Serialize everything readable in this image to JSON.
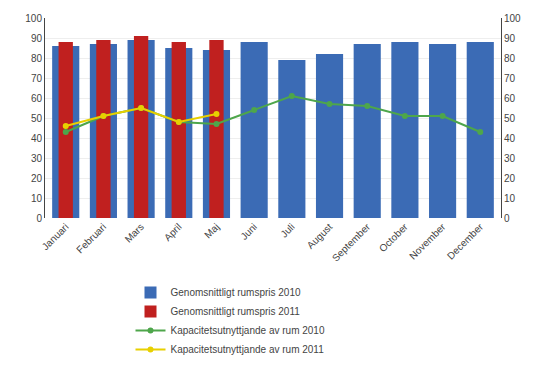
{
  "chart_data": {
    "type": "bar",
    "categories": [
      "Januari",
      "Februari",
      "Mars",
      "April",
      "Maj",
      "Juni",
      "Juli",
      "August",
      "September",
      "October",
      "November",
      "December"
    ],
    "series": [
      {
        "name": "Genomsnittligt rumspris 2010",
        "type": "bar",
        "color": "#3B6BB5",
        "values": [
          86,
          87,
          89,
          85,
          84,
          88,
          79,
          82,
          87,
          88,
          87,
          88
        ]
      },
      {
        "name": "Genomsnittligt rumspris 2011",
        "type": "bar",
        "color": "#C0201F",
        "values": [
          88,
          89,
          91,
          88,
          89,
          null,
          null,
          null,
          null,
          null,
          null,
          null
        ]
      },
      {
        "name": "Kapacitetsutnyttjande av rum 2010",
        "type": "line",
        "axis": "y2",
        "color": "#4EA64B",
        "marker": "circle",
        "line_style": "solid",
        "values": [
          43,
          51,
          55,
          48,
          47,
          54,
          61,
          57,
          56,
          51,
          51,
          43
        ]
      },
      {
        "name": "Kapacitetsutnyttjande av rum 2011",
        "type": "line",
        "axis": "y2",
        "color": "#E8D000",
        "marker": "circle",
        "line_style": "solid",
        "values": [
          46,
          51,
          55,
          48,
          52,
          null,
          null,
          null,
          null,
          null,
          null,
          null
        ]
      }
    ],
    "ylim": [
      0,
      100
    ],
    "yticks": [
      0,
      10,
      20,
      30,
      40,
      50,
      60,
      70,
      80,
      90,
      100
    ],
    "y2lim": [
      0,
      100
    ],
    "y2ticks": [
      0,
      10,
      20,
      30,
      40,
      50,
      60,
      70,
      80,
      90,
      100
    ],
    "grid": true,
    "legend": "bottom"
  }
}
